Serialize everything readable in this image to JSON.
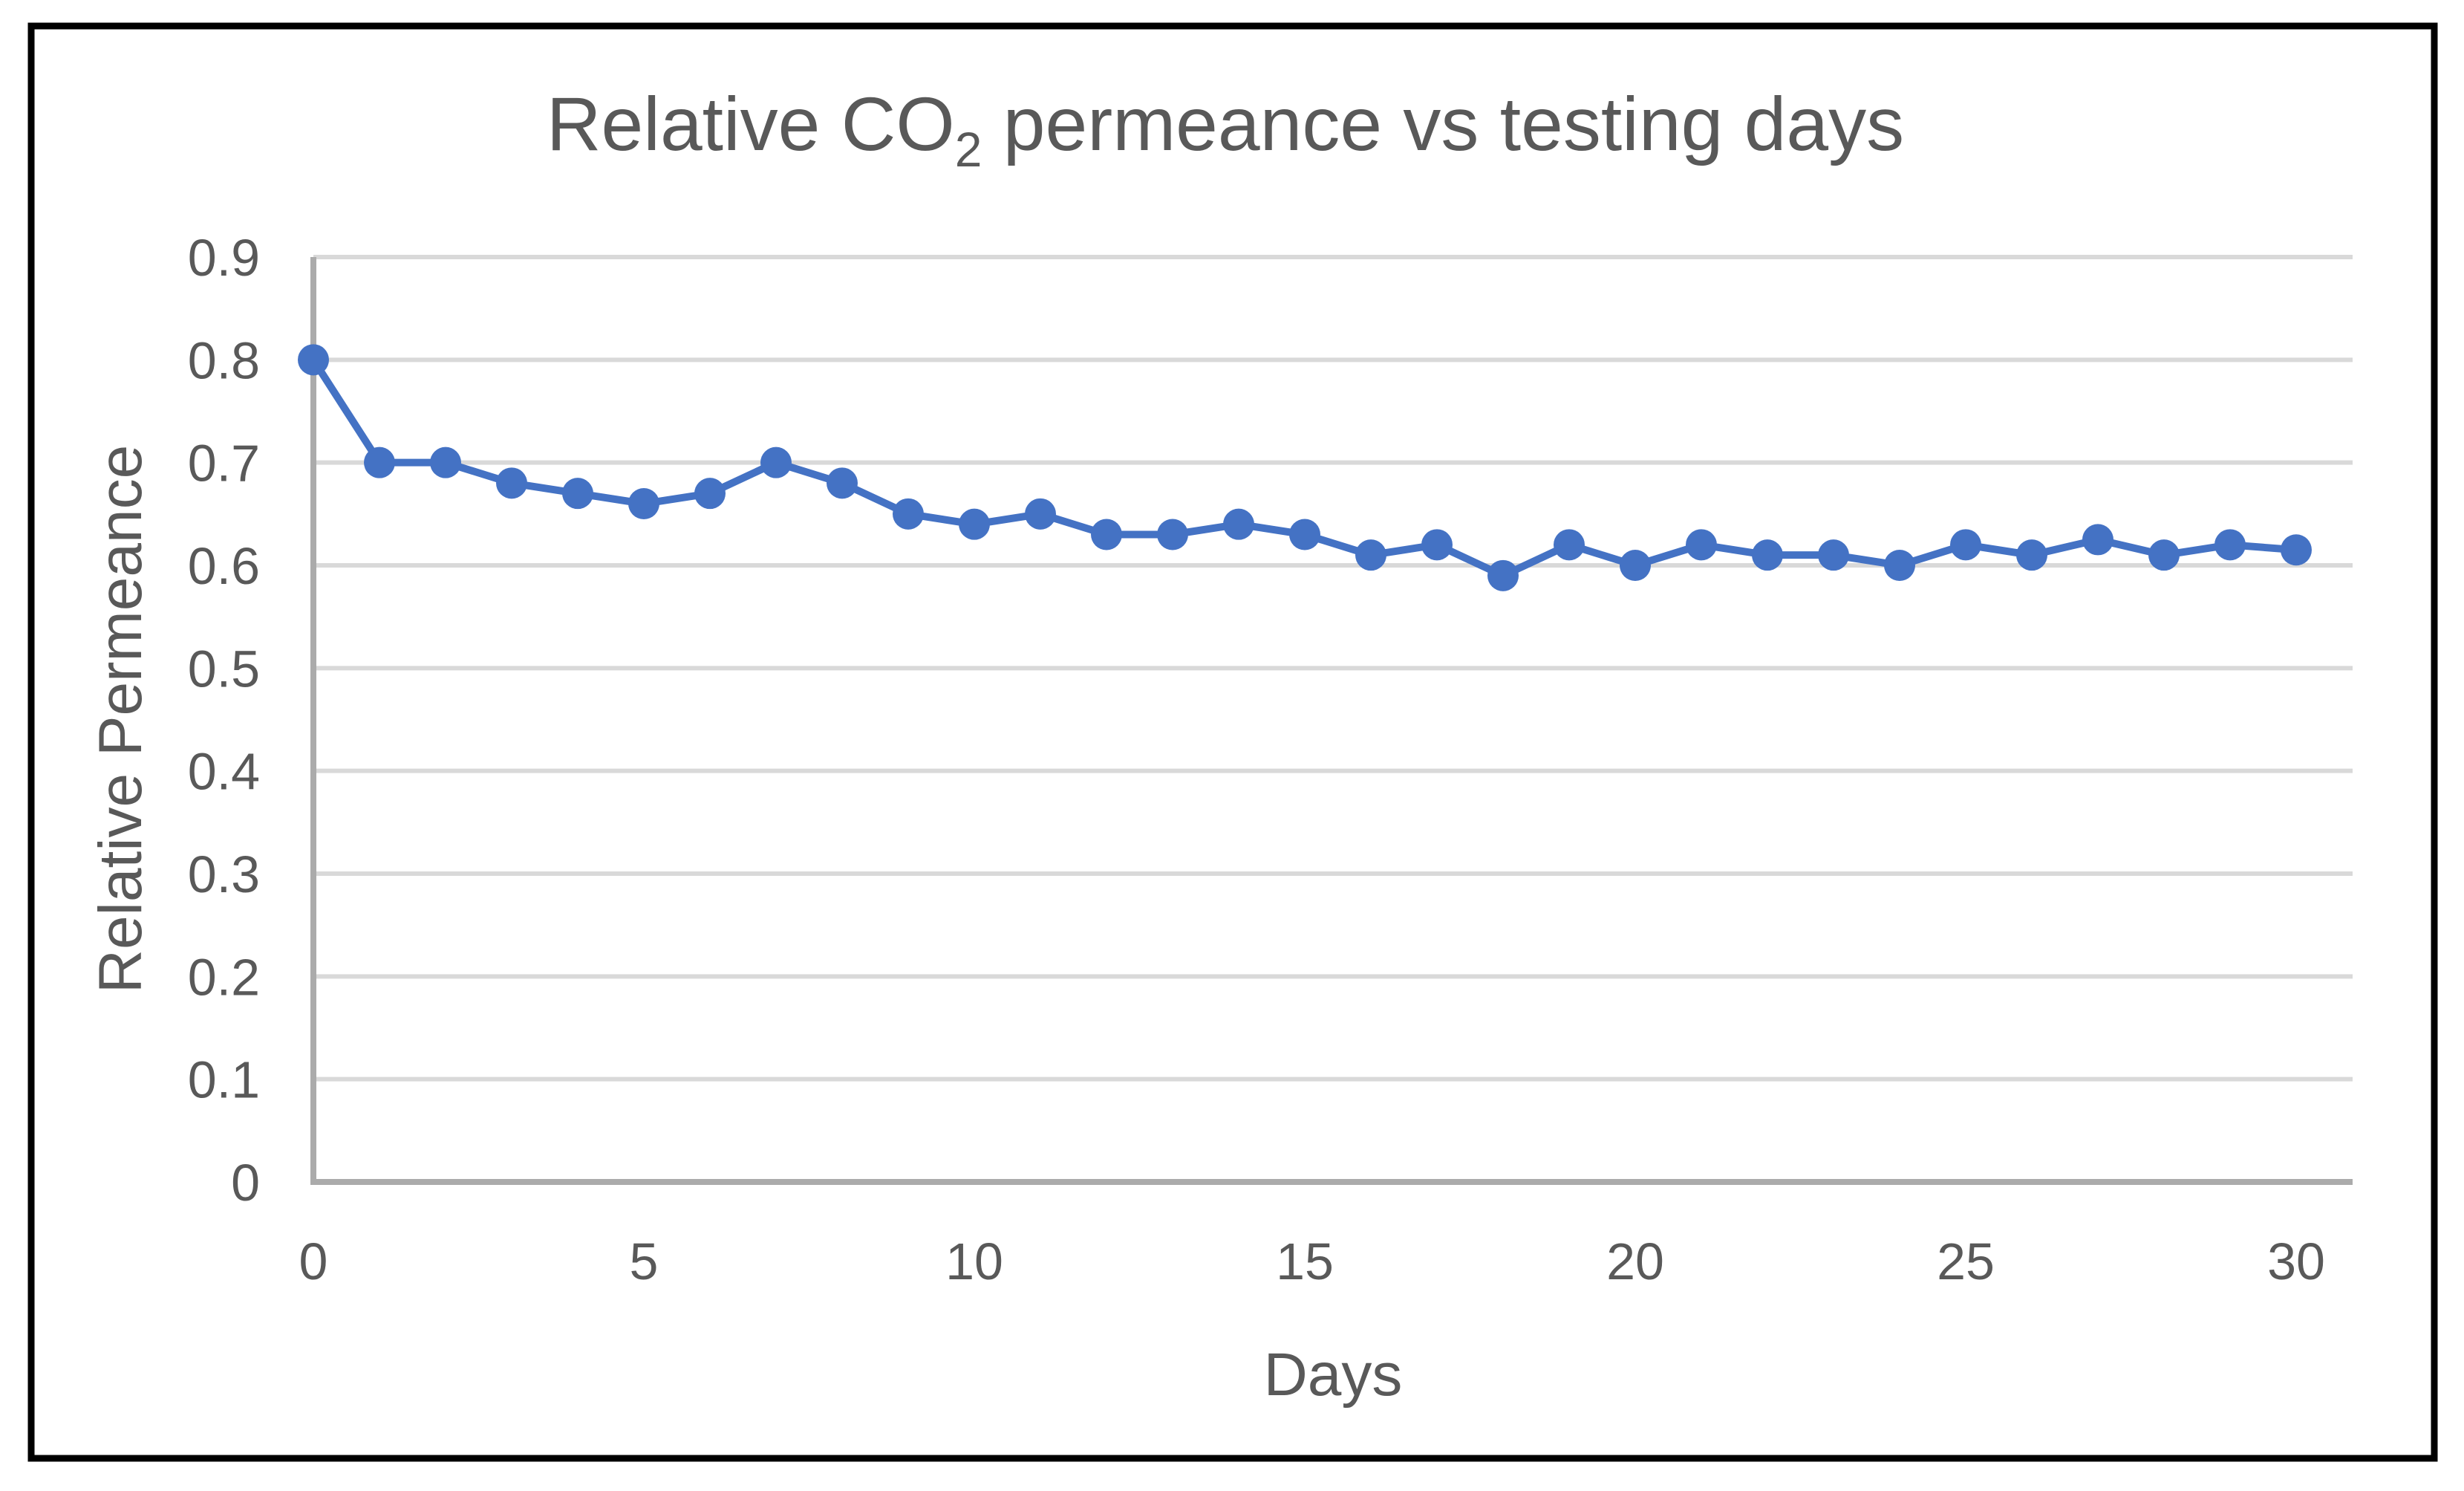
{
  "chart": {
    "title": {
      "prefix": "Relative CO",
      "subscript": "2",
      "suffix": " permeance vs testing days"
    },
    "x_axis": {
      "label": "Days",
      "tick_labels": [
        "0",
        "5",
        "10",
        "15",
        "20",
        "25",
        "30"
      ]
    },
    "y_axis": {
      "label": "Relative Permeance",
      "tick_labels": [
        "0",
        "0.1",
        "0.2",
        "0.3",
        "0.4",
        "0.5",
        "0.6",
        "0.7",
        "0.8",
        "0.9"
      ]
    }
  },
  "chart_data": {
    "type": "line",
    "title": "Relative CO2 permeance vs testing days",
    "xlabel": "Days",
    "ylabel": "Relative Permeance",
    "x": [
      0,
      1,
      2,
      3,
      4,
      5,
      6,
      7,
      8,
      9,
      10,
      11,
      12,
      13,
      14,
      15,
      16,
      17,
      18,
      19,
      20,
      21,
      22,
      23,
      24,
      25,
      26,
      27,
      28,
      29,
      30
    ],
    "values": [
      0.8,
      0.7,
      0.7,
      0.68,
      0.67,
      0.66,
      0.67,
      0.7,
      0.68,
      0.65,
      0.64,
      0.65,
      0.63,
      0.63,
      0.64,
      0.63,
      0.61,
      0.62,
      0.59,
      0.62,
      0.6,
      0.62,
      0.61,
      0.61,
      0.6,
      0.62,
      0.61,
      0.625,
      0.61,
      0.62,
      0.615
    ],
    "x_ticks": [
      0,
      5,
      10,
      15,
      20,
      25,
      30
    ],
    "y_ticks": [
      0,
      0.1,
      0.2,
      0.3,
      0.4,
      0.5,
      0.6,
      0.7,
      0.8,
      0.9
    ],
    "xlim": [
      0,
      30
    ],
    "ylim": [
      0,
      0.9
    ],
    "grid": true,
    "legend": false,
    "marker": "circle",
    "colors": {
      "series": "#4472C4",
      "gridline": "#D9D9D9",
      "axis": "#ABABAB",
      "text": "#595959",
      "frame": "#000000"
    }
  }
}
